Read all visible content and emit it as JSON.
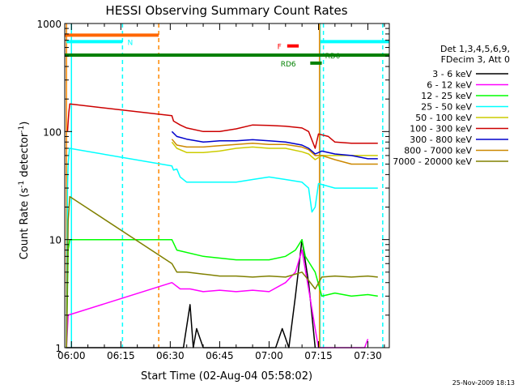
{
  "chart_data": {
    "type": "line",
    "title": "HESSI Observing Summary Count Rates",
    "xlabel": "Start Time (02-Aug-04 05:58:02)",
    "ylabel_main": "Count Rate (s",
    "ylabel_sup1": "-1",
    "ylabel_mid": " detector",
    "ylabel_sup2": "-1",
    "ylabel_end": ")",
    "y_scale": "log",
    "ylim": [
      1,
      1000
    ],
    "xlim_minutes": [
      -2.03,
      96.5
    ],
    "x_ticks": [
      {
        "value": 0,
        "label": "06:00"
      },
      {
        "value": 15,
        "label": "06:15"
      },
      {
        "value": 30,
        "label": "06:30"
      },
      {
        "value": 45,
        "label": "06:45"
      },
      {
        "value": 60,
        "label": "07:00"
      },
      {
        "value": 75,
        "label": "07:15"
      },
      {
        "value": 90,
        "label": "07:30"
      }
    ],
    "y_ticks": [
      {
        "value": 1,
        "label": "1"
      },
      {
        "value": 10,
        "label": "10"
      },
      {
        "value": 100,
        "label": "100"
      },
      {
        "value": 1000,
        "label": "1000"
      }
    ],
    "legend": {
      "header1": "Det 1,3,4,5,6,9,",
      "header2": "FDecim 3, Att 0",
      "placement": "right"
    },
    "series": [
      {
        "name": "3 - 6 keV",
        "color": "#000000",
        "points": [
          [
            -1.7,
            1
          ],
          [
            -1.5,
            1
          ],
          [
            30,
            1
          ],
          [
            34,
            1
          ],
          [
            36,
            2.5
          ],
          [
            37,
            1
          ],
          [
            38,
            1.5
          ],
          [
            40,
            1
          ],
          [
            62,
            1
          ],
          [
            64,
            1.5
          ],
          [
            66,
            1
          ],
          [
            68,
            3
          ],
          [
            70,
            10
          ],
          [
            72,
            4
          ],
          [
            73,
            2
          ],
          [
            74,
            1
          ]
        ]
      },
      {
        "name": "6 - 12 keV",
        "color": "#ff00ff",
        "points": [
          [
            -1.5,
            1
          ],
          [
            -1,
            2
          ],
          [
            30.5,
            4
          ],
          [
            33,
            3.5
          ],
          [
            36,
            3.5
          ],
          [
            40,
            3.3
          ],
          [
            45,
            3.4
          ],
          [
            50,
            3.3
          ],
          [
            55,
            3.4
          ],
          [
            60,
            3.3
          ],
          [
            65,
            4
          ],
          [
            68,
            5
          ],
          [
            70,
            8
          ],
          [
            72,
            3.5
          ],
          [
            74,
            1.5
          ],
          [
            75,
            1
          ],
          [
            89,
            1
          ],
          [
            90,
            1.2
          ]
        ]
      },
      {
        "name": "12 - 25 keV",
        "color": "#00ff00",
        "points": [
          [
            -1.5,
            1
          ],
          [
            -1,
            8
          ],
          [
            -0.5,
            10
          ],
          [
            30.5,
            10
          ],
          [
            32,
            8
          ],
          [
            40,
            7
          ],
          [
            50,
            6.5
          ],
          [
            60,
            6.5
          ],
          [
            65,
            7
          ],
          [
            68,
            8
          ],
          [
            70,
            10
          ],
          [
            71,
            7
          ],
          [
            74,
            5
          ],
          [
            76,
            3
          ],
          [
            80,
            3.2
          ],
          [
            85,
            3
          ],
          [
            90,
            3.1
          ],
          [
            93,
            3
          ]
        ]
      },
      {
        "name": "25 - 50 keV",
        "color": "#00ffff",
        "points": [
          [
            -1.5,
            1
          ],
          [
            -1.2,
            30
          ],
          [
            -1,
            50
          ],
          [
            -0.6,
            70
          ],
          [
            30.5,
            48
          ],
          [
            31,
            44
          ],
          [
            32,
            45
          ],
          [
            33,
            38
          ],
          [
            35,
            34
          ],
          [
            40,
            34
          ],
          [
            45,
            34
          ],
          [
            50,
            34
          ],
          [
            55,
            36
          ],
          [
            60,
            38
          ],
          [
            65,
            36
          ],
          [
            70,
            34
          ],
          [
            72,
            30
          ],
          [
            73,
            18
          ],
          [
            74,
            20
          ],
          [
            75,
            33
          ],
          [
            80,
            30
          ],
          [
            85,
            30
          ],
          [
            90,
            30
          ],
          [
            93,
            30
          ]
        ]
      },
      {
        "name": "50 - 100 keV",
        "color": "#cccc00",
        "points": [
          [
            30.5,
            80
          ],
          [
            32,
            70
          ],
          [
            35,
            64
          ],
          [
            40,
            64
          ],
          [
            45,
            66
          ],
          [
            50,
            70
          ],
          [
            55,
            72
          ],
          [
            60,
            70
          ],
          [
            65,
            70
          ],
          [
            70,
            65
          ],
          [
            72,
            62
          ],
          [
            74,
            55
          ],
          [
            76,
            60
          ],
          [
            80,
            60
          ],
          [
            85,
            60
          ],
          [
            90,
            60
          ],
          [
            93,
            60
          ]
        ]
      },
      {
        "name": "100 - 300 keV",
        "color": "#cc0000",
        "points": [
          [
            -1.2,
            100
          ],
          [
            -0.8,
            150
          ],
          [
            -0.5,
            180
          ],
          [
            30.5,
            140
          ],
          [
            31,
            125
          ],
          [
            33,
            115
          ],
          [
            35,
            108
          ],
          [
            40,
            100
          ],
          [
            45,
            100
          ],
          [
            50,
            106
          ],
          [
            55,
            115
          ],
          [
            60,
            114
          ],
          [
            65,
            112
          ],
          [
            70,
            108
          ],
          [
            72,
            100
          ],
          [
            74,
            70
          ],
          [
            75,
            95
          ],
          [
            78,
            90
          ],
          [
            80,
            80
          ],
          [
            85,
            78
          ],
          [
            90,
            78
          ],
          [
            93,
            78
          ]
        ]
      },
      {
        "name": "300 - 800 keV",
        "color": "#0000cc",
        "points": [
          [
            30.5,
            100
          ],
          [
            32,
            90
          ],
          [
            35,
            85
          ],
          [
            40,
            80
          ],
          [
            45,
            82
          ],
          [
            50,
            82
          ],
          [
            55,
            84
          ],
          [
            60,
            82
          ],
          [
            65,
            80
          ],
          [
            70,
            75
          ],
          [
            72,
            70
          ],
          [
            74,
            62
          ],
          [
            76,
            66
          ],
          [
            80,
            62
          ],
          [
            85,
            60
          ],
          [
            90,
            56
          ],
          [
            93,
            56
          ]
        ]
      },
      {
        "name": "800 - 7000 keV",
        "color": "#cc8800",
        "points": [
          [
            30.5,
            85
          ],
          [
            32,
            75
          ],
          [
            35,
            72
          ],
          [
            40,
            72
          ],
          [
            45,
            74
          ],
          [
            50,
            76
          ],
          [
            55,
            78
          ],
          [
            60,
            76
          ],
          [
            65,
            76
          ],
          [
            70,
            72
          ],
          [
            72,
            68
          ],
          [
            74,
            60
          ],
          [
            76,
            60
          ],
          [
            80,
            55
          ],
          [
            85,
            50
          ],
          [
            90,
            50
          ],
          [
            93,
            50
          ]
        ]
      },
      {
        "name": "7000 - 20000 keV",
        "color": "#808000",
        "points": [
          [
            -1.5,
            1
          ],
          [
            -1,
            15
          ],
          [
            -0.5,
            25
          ],
          [
            30.5,
            6
          ],
          [
            32,
            5
          ],
          [
            35,
            5
          ],
          [
            40,
            4.8
          ],
          [
            45,
            4.6
          ],
          [
            50,
            4.6
          ],
          [
            55,
            4.5
          ],
          [
            60,
            4.6
          ],
          [
            65,
            4.5
          ],
          [
            70,
            5
          ],
          [
            72,
            4.2
          ],
          [
            74,
            3.5
          ],
          [
            76,
            4.5
          ],
          [
            80,
            4.6
          ],
          [
            85,
            4.5
          ],
          [
            90,
            4.6
          ],
          [
            93,
            4.5
          ]
        ]
      }
    ],
    "flag_bars": [
      {
        "label": "",
        "color": "#ff6600",
        "y": 780,
        "x": [
          -2.03,
          26.5
        ],
        "tick_value": 780
      },
      {
        "label": "N",
        "color": "#00ffff",
        "y": 680,
        "x": [
          -1.5,
          15.5
        ],
        "label_x": 17
      },
      {
        "label": "",
        "color": "#00ffff",
        "y": 680,
        "x": [
          75.5,
          96.5
        ]
      },
      {
        "label": "",
        "color": "#008000",
        "y": 510,
        "x": [
          -2.03,
          96.5
        ]
      },
      {
        "label": "F",
        "color": "#ff0000",
        "y": 620,
        "x": [
          65.5,
          69
        ],
        "label_x": 62.5
      },
      {
        "label": "RD6",
        "color": "#008000",
        "y": 430,
        "x": [
          72.5,
          76
        ],
        "label_x": 63.5
      },
      {
        "label": "RD0",
        "color": "#008000",
        "y": 510,
        "x": [
          74,
          75
        ],
        "label_x": 77
      }
    ],
    "vertical_markers": [
      {
        "x": -1.5,
        "color": "#ff8800",
        "style": "solid"
      },
      {
        "x": 0,
        "color": "#00ffff",
        "style": "solid"
      },
      {
        "x": 15.5,
        "color": "#00ffff",
        "style": "dashed"
      },
      {
        "x": 26.5,
        "color": "#ff8800",
        "style": "dashed"
      },
      {
        "x": 75.5,
        "color": "#00ffff",
        "style": "solid"
      },
      {
        "x": 75.3,
        "color": "#ff8800",
        "style": "solid"
      },
      {
        "x": 76.5,
        "color": "#00ffff",
        "style": "dashed"
      },
      {
        "x": 94.5,
        "color": "#00ffff",
        "style": "dashed"
      }
    ],
    "timestamp": "25-Nov-2009 18:13"
  }
}
